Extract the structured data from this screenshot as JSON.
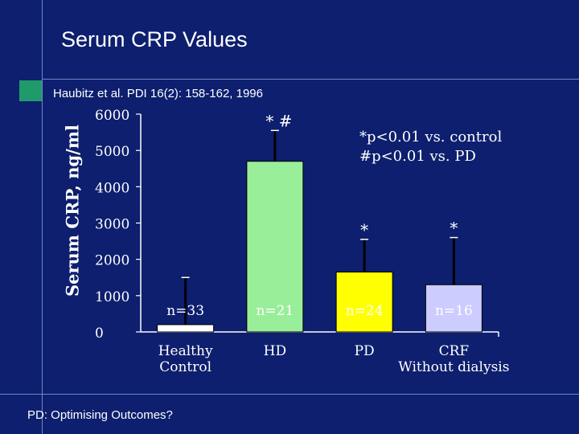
{
  "slide": {
    "title": "Serum CRP Values",
    "subtitle": "Haubitz et al. PDI 16(2): 158-162, 1996",
    "footer": "PD: Optimising Outcomes?",
    "notes": [
      "*p<0.01 vs. control",
      "#p<0.01 vs. PD"
    ]
  },
  "chart_data": {
    "type": "bar",
    "title": "",
    "xlabel": "",
    "ylabel": "Serum CRP, ng/ml",
    "ylim": [
      0,
      6000
    ],
    "yticks": [
      0,
      1000,
      2000,
      3000,
      4000,
      5000,
      6000
    ],
    "grid": false,
    "categories": [
      [
        "Healthy",
        "Control"
      ],
      [
        "HD"
      ],
      [
        "PD"
      ],
      [
        "CRF",
        "Without dialysis"
      ]
    ],
    "values": [
      200,
      4700,
      1650,
      1300
    ],
    "error_upper": [
      1500,
      5550,
      2550,
      2600
    ],
    "n_labels": [
      "n=33",
      "n=21",
      "n=24",
      "n=16"
    ],
    "significance": [
      "",
      "* #",
      "*",
      "*"
    ],
    "colors": [
      "#ffffff",
      "#99ee99",
      "#ffff00",
      "#ccccff"
    ]
  }
}
